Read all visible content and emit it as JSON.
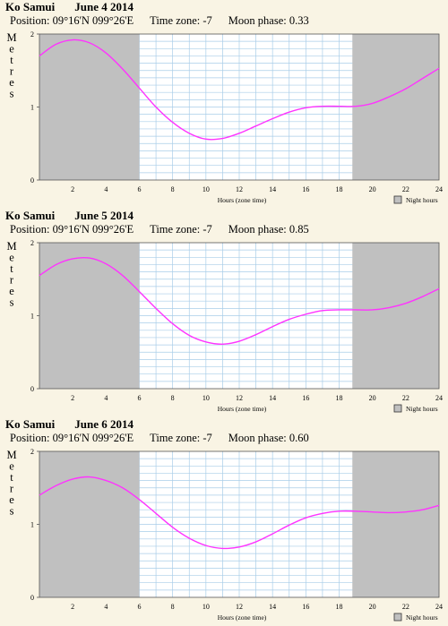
{
  "panels": [
    {
      "location": "Ko Samui",
      "date": "June 4 2014",
      "position": "Position: 09°16'N 099°26'E",
      "timezone": "Time zone: -7",
      "moon": "Moon phase: 0.33"
    },
    {
      "location": "Ko Samui",
      "date": "June 5 2014",
      "position": "Position: 09°16'N 099°26'E",
      "timezone": "Time zone: -7",
      "moon": "Moon phase: 0.85"
    },
    {
      "location": "Ko Samui",
      "date": "June 6 2014",
      "position": "Position: 09°16'N 099°26'E",
      "timezone": "Time zone: -7",
      "moon": "Moon phase: 0.60"
    }
  ],
  "chart_data": [
    {
      "type": "line",
      "ylabel": "Metres",
      "xlabel": "Hours (zone time)",
      "legend": "Night hours",
      "legend_placement": "bottom-right",
      "xlim": [
        0,
        24
      ],
      "ylim": [
        0,
        2
      ],
      "x_ticks": [
        "2",
        "4",
        "6",
        "8",
        "10",
        "12",
        "14",
        "16",
        "18",
        "20",
        "22",
        "24"
      ],
      "y_ticks": [
        "0",
        "1",
        "2"
      ],
      "night_shading": [
        [
          0,
          6.0
        ],
        [
          18.8,
          24
        ]
      ],
      "grid": true,
      "line_color": "#ff33ff",
      "night_color": "#c0c0c0",
      "x": [
        0,
        1,
        2,
        3,
        4,
        5,
        6,
        7,
        8,
        9,
        10,
        11,
        12,
        13,
        14,
        15,
        16,
        17,
        18,
        19,
        20,
        21,
        22,
        23,
        24
      ],
      "values": [
        1.7,
        1.86,
        1.92,
        1.88,
        1.74,
        1.52,
        1.26,
        1.0,
        0.79,
        0.64,
        0.56,
        0.57,
        0.64,
        0.74,
        0.84,
        0.93,
        0.99,
        1.01,
        1.01,
        1.01,
        1.05,
        1.14,
        1.25,
        1.39,
        1.53
      ]
    },
    {
      "type": "line",
      "ylabel": "Metres",
      "xlabel": "Hours (zone time)",
      "legend": "Night hours",
      "legend_placement": "bottom-right",
      "xlim": [
        0,
        24
      ],
      "ylim": [
        0,
        2
      ],
      "x_ticks": [
        "2",
        "4",
        "6",
        "8",
        "10",
        "12",
        "14",
        "16",
        "18",
        "20",
        "22",
        "24"
      ],
      "y_ticks": [
        "0",
        "1",
        "2"
      ],
      "night_shading": [
        [
          0,
          6.0
        ],
        [
          18.8,
          24
        ]
      ],
      "grid": true,
      "line_color": "#ff33ff",
      "night_color": "#c0c0c0",
      "x": [
        0,
        1,
        2,
        3,
        4,
        5,
        6,
        7,
        8,
        9,
        10,
        11,
        12,
        13,
        14,
        15,
        16,
        17,
        18,
        19,
        20,
        21,
        22,
        23,
        24
      ],
      "values": [
        1.55,
        1.7,
        1.78,
        1.79,
        1.71,
        1.55,
        1.33,
        1.1,
        0.89,
        0.73,
        0.64,
        0.61,
        0.65,
        0.74,
        0.85,
        0.95,
        1.02,
        1.07,
        1.08,
        1.08,
        1.08,
        1.11,
        1.17,
        1.26,
        1.37
      ]
    },
    {
      "type": "line",
      "ylabel": "Metres",
      "xlabel": "Hours (zone time)",
      "legend": "Night hours",
      "legend_placement": "bottom-right",
      "xlim": [
        0,
        24
      ],
      "ylim": [
        0,
        2
      ],
      "x_ticks": [
        "2",
        "4",
        "6",
        "8",
        "10",
        "12",
        "14",
        "16",
        "18",
        "20",
        "22",
        "24"
      ],
      "y_ticks": [
        "0",
        "1",
        "2"
      ],
      "night_shading": [
        [
          0,
          6.0
        ],
        [
          18.8,
          24
        ]
      ],
      "grid": true,
      "line_color": "#ff33ff",
      "night_color": "#c0c0c0",
      "x": [
        0,
        1,
        2,
        3,
        4,
        5,
        6,
        7,
        8,
        9,
        10,
        11,
        12,
        13,
        14,
        15,
        16,
        17,
        18,
        19,
        20,
        21,
        22,
        23,
        24
      ],
      "values": [
        1.4,
        1.53,
        1.62,
        1.65,
        1.6,
        1.5,
        1.34,
        1.15,
        0.96,
        0.81,
        0.71,
        0.67,
        0.69,
        0.76,
        0.87,
        0.99,
        1.09,
        1.15,
        1.18,
        1.18,
        1.17,
        1.16,
        1.17,
        1.2,
        1.26
      ]
    }
  ]
}
